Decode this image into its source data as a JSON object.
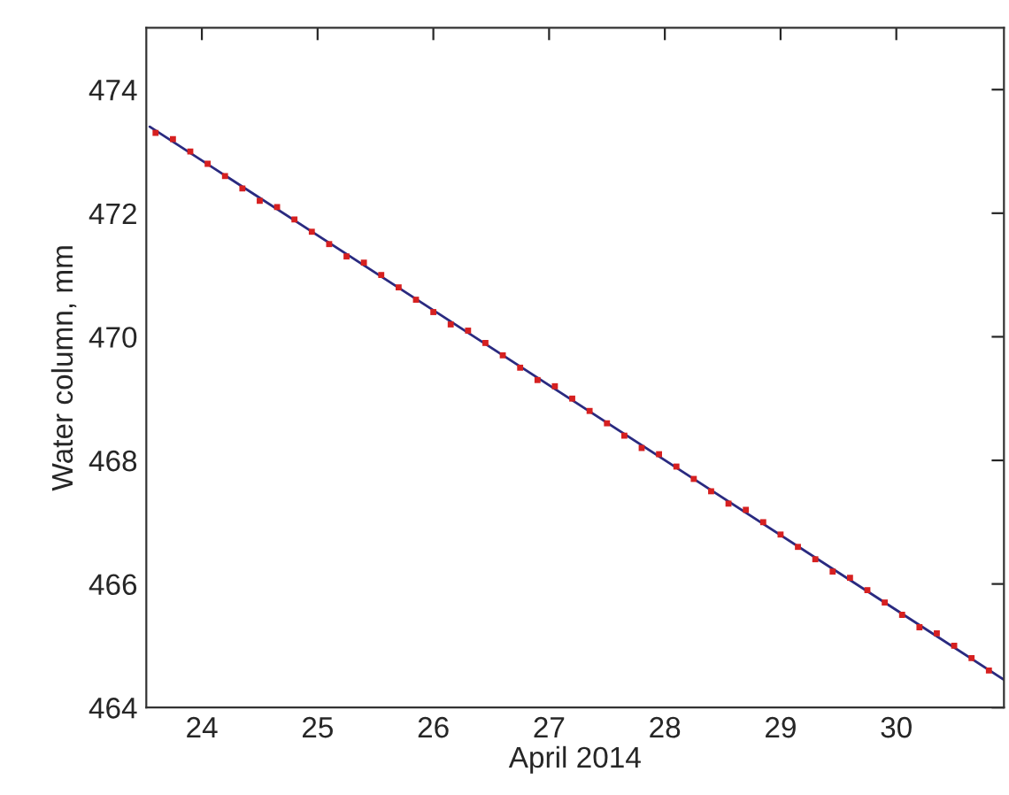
{
  "chart_data": {
    "type": "scatter",
    "xlabel": "April 2014",
    "ylabel": "Water column, mm",
    "xlim": [
      23.52,
      30.93
    ],
    "ylim": [
      464,
      475
    ],
    "xticks": [
      24,
      25,
      26,
      27,
      28,
      29,
      30
    ],
    "yticks": [
      464,
      466,
      468,
      470,
      472,
      474
    ],
    "grid": false,
    "legend": false,
    "series": [
      {
        "color": "#d62020",
        "marker": "square",
        "x": [
          23.6,
          23.75,
          23.9,
          24.05,
          24.2,
          24.35,
          24.5,
          24.65,
          24.8,
          24.95,
          25.1,
          25.25,
          25.4,
          25.55,
          25.7,
          25.85,
          26.0,
          26.15,
          26.3,
          26.45,
          26.6,
          26.75,
          26.9,
          27.05,
          27.2,
          27.35,
          27.5,
          27.65,
          27.8,
          27.95,
          28.1,
          28.25,
          28.4,
          28.55,
          28.7,
          28.85,
          29.0,
          29.15,
          29.3,
          29.45,
          29.6,
          29.75,
          29.9,
          30.05,
          30.2,
          30.35,
          30.5,
          30.65,
          30.8
        ],
        "values": [
          473.3,
          473.2,
          473.0,
          472.8,
          472.6,
          472.4,
          472.2,
          472.1,
          471.9,
          471.7,
          471.5,
          471.3,
          471.2,
          471.0,
          470.8,
          470.6,
          470.4,
          470.2,
          470.1,
          469.9,
          469.7,
          469.5,
          469.3,
          469.2,
          469.0,
          468.8,
          468.6,
          468.4,
          468.2,
          468.1,
          467.9,
          467.7,
          467.5,
          467.3,
          467.2,
          467.0,
          466.8,
          466.6,
          466.4,
          466.2,
          466.1,
          465.9,
          465.7,
          465.5,
          465.3,
          465.2,
          465.0,
          464.8,
          464.6
        ]
      },
      {
        "type": "line",
        "color": "#2a2a80",
        "marker": "none",
        "line_style": "solid",
        "x": [
          23.55,
          30.93
        ],
        "values": [
          473.4,
          464.45
        ]
      }
    ]
  }
}
